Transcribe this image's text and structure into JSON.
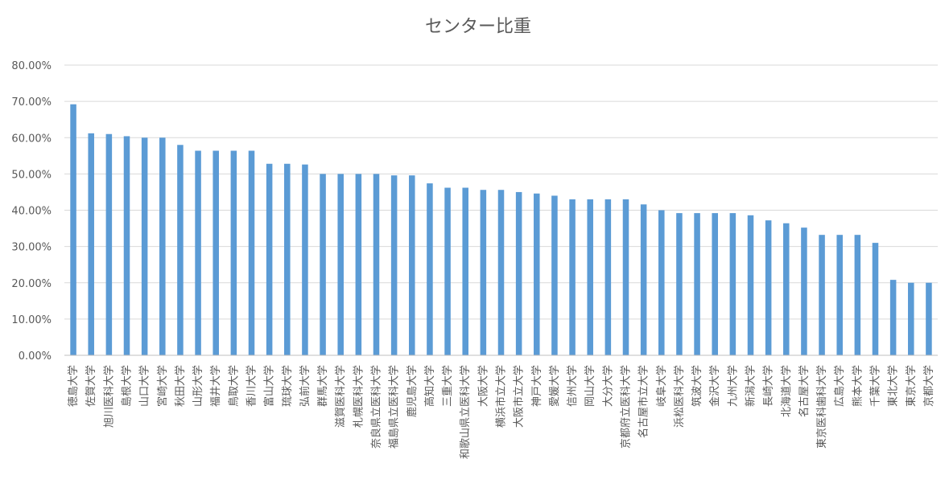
{
  "chart_data": {
    "type": "bar",
    "title": "センター比重",
    "xlabel": "",
    "ylabel": "",
    "ylim": [
      0,
      0.8
    ],
    "yticks": [
      "0.00%",
      "10.00%",
      "20.00%",
      "30.00%",
      "40.00%",
      "50.00%",
      "60.00%",
      "70.00%",
      "80.00%"
    ],
    "grid": true,
    "legend": "none",
    "bar_color": "#5b9bd5",
    "categories": [
      "徳島大学",
      "佐賀大学",
      "旭川医科大学",
      "島根大学",
      "山口大学",
      "宮崎大学",
      "秋田大学",
      "山形大学",
      "福井大学",
      "鳥取大学",
      "香川大学",
      "富山大学",
      "琉球大学",
      "弘前大学",
      "群馬大学",
      "滋賀医科大学",
      "札幌医科大学",
      "奈良県立医科大学",
      "福島県立医科大学",
      "鹿児島大学",
      "高知大学",
      "三重大学",
      "和歌山県立医科大学",
      "大阪大学",
      "横浜市立大学",
      "大阪市立大学",
      "神戸大学",
      "愛媛大学",
      "信州大学",
      "岡山大学",
      "大分大学",
      "京都府立医科大学",
      "名古屋市立大学",
      "岐阜大学",
      "浜松医科大学",
      "筑波大学",
      "金沢大学",
      "九州大学",
      "新潟大学",
      "長崎大学",
      "北海道大学",
      "名古屋大学",
      "東京医科歯科大学",
      "広島大学",
      "熊本大学",
      "千葉大学",
      "東北大学",
      "東京大学",
      "京都大学"
    ],
    "values": [
      0.692,
      0.612,
      0.61,
      0.604,
      0.6,
      0.6,
      0.58,
      0.564,
      0.564,
      0.564,
      0.564,
      0.528,
      0.528,
      0.526,
      0.5,
      0.5,
      0.5,
      0.5,
      0.496,
      0.496,
      0.474,
      0.462,
      0.462,
      0.456,
      0.456,
      0.45,
      0.446,
      0.44,
      0.43,
      0.43,
      0.43,
      0.43,
      0.416,
      0.4,
      0.392,
      0.392,
      0.392,
      0.392,
      0.386,
      0.372,
      0.364,
      0.352,
      0.332,
      0.332,
      0.332,
      0.31,
      0.208,
      0.2,
      0.2
    ]
  }
}
